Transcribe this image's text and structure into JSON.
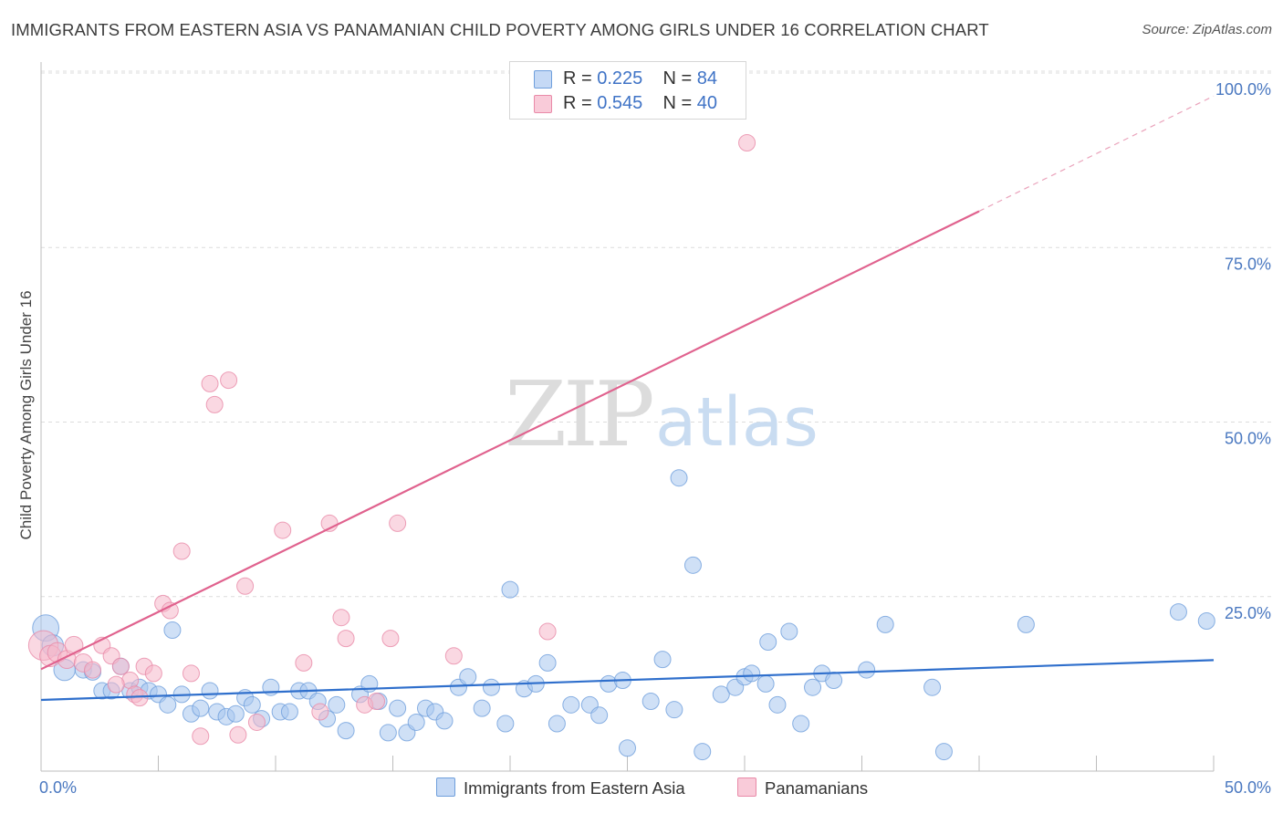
{
  "title": "IMMIGRANTS FROM EASTERN ASIA VS PANAMANIAN CHILD POVERTY AMONG GIRLS UNDER 16 CORRELATION CHART",
  "source": "Source: ZipAtlas.com",
  "watermark": {
    "zip": "ZIP",
    "atlas": "atlas"
  },
  "colors": {
    "blue_fill": "#a8c6ee",
    "blue_stroke": "#6f9fdc",
    "blue_line": "#2f6fcc",
    "pink_fill": "#f6b8cb",
    "pink_stroke": "#e98aa8",
    "pink_line": "#e0628e",
    "tick_text": "#4a78c0",
    "grid": "#dcdcdc"
  },
  "legend": {
    "rows": [
      {
        "r_label": "R =",
        "r_value": "0.225",
        "n_label": "N =",
        "n_value": "84"
      },
      {
        "r_label": "R =",
        "r_value": "0.545",
        "n_label": "N =",
        "n_value": "40"
      }
    ]
  },
  "bottom_legend": {
    "blue": "Immigrants from Eastern Asia",
    "pink": "Panamanians"
  },
  "chart_data": {
    "type": "scatter",
    "xlabel": "",
    "ylabel": "Child Poverty Among Girls Under 16",
    "xlim": [
      0,
      50
    ],
    "ylim": [
      0,
      100
    ],
    "x_tick_labels": [
      "0.0%",
      "50.0%"
    ],
    "y_tick_labels": [
      "100.0%",
      "75.0%",
      "50.0%",
      "25.0%"
    ],
    "y_ticks": [
      100,
      75,
      50,
      25
    ],
    "grid": true,
    "legend_position": "top-center",
    "series": [
      {
        "name": "Immigrants from Eastern Asia",
        "color": "#a8c6ee",
        "trend": {
          "x": [
            0,
            50
          ],
          "y": [
            10.2,
            15.9
          ]
        },
        "points": [
          [
            0.2,
            20.5,
            1.6
          ],
          [
            0.5,
            18,
            1.3
          ],
          [
            1.0,
            14.5,
            1.3
          ],
          [
            1.8,
            14.5,
            1
          ],
          [
            2.2,
            14.2,
            1
          ],
          [
            2.6,
            11.5,
            1
          ],
          [
            3.0,
            11.5,
            1
          ],
          [
            3.4,
            15,
            1
          ],
          [
            3.8,
            11.5,
            1
          ],
          [
            4.2,
            12,
            1
          ],
          [
            4.6,
            11.5,
            1
          ],
          [
            5.0,
            11,
            1
          ],
          [
            5.4,
            9.5,
            1
          ],
          [
            5.6,
            20.2,
            1
          ],
          [
            6.0,
            11,
            1
          ],
          [
            6.4,
            8.2,
            1
          ],
          [
            6.8,
            9,
            1
          ],
          [
            7.2,
            11.5,
            1
          ],
          [
            7.5,
            8.5,
            1
          ],
          [
            7.9,
            7.8,
            1
          ],
          [
            8.3,
            8.2,
            1
          ],
          [
            8.7,
            10.5,
            1
          ],
          [
            9.0,
            9.5,
            1
          ],
          [
            9.4,
            7.5,
            1
          ],
          [
            9.8,
            12,
            1
          ],
          [
            10.2,
            8.5,
            1
          ],
          [
            10.6,
            8.5,
            1
          ],
          [
            11.0,
            11.5,
            1
          ],
          [
            11.4,
            11.5,
            1
          ],
          [
            11.8,
            10,
            1
          ],
          [
            12.2,
            7.5,
            1
          ],
          [
            12.6,
            9.5,
            1
          ],
          [
            13.0,
            5.8,
            1
          ],
          [
            13.6,
            11,
            1
          ],
          [
            14.0,
            12.5,
            1
          ],
          [
            14.4,
            10,
            1
          ],
          [
            14.8,
            5.5,
            1
          ],
          [
            15.2,
            9,
            1
          ],
          [
            15.6,
            5.5,
            1
          ],
          [
            16.0,
            7,
            1
          ],
          [
            16.4,
            9,
            1
          ],
          [
            16.8,
            8.5,
            1
          ],
          [
            17.2,
            7.2,
            1
          ],
          [
            17.8,
            12,
            1
          ],
          [
            18.2,
            13.5,
            1
          ],
          [
            18.8,
            9,
            1
          ],
          [
            19.2,
            12,
            1
          ],
          [
            19.8,
            6.8,
            1
          ],
          [
            20.0,
            26,
            1
          ],
          [
            20.6,
            11.8,
            1
          ],
          [
            21.1,
            12.5,
            1
          ],
          [
            21.6,
            15.5,
            1
          ],
          [
            22.0,
            6.8,
            1
          ],
          [
            22.6,
            9.5,
            1
          ],
          [
            23.4,
            9.5,
            1
          ],
          [
            23.8,
            8,
            1
          ],
          [
            24.2,
            12.5,
            1
          ],
          [
            24.8,
            13,
            1
          ],
          [
            25.0,
            3.3,
            1
          ],
          [
            26.0,
            10,
            1
          ],
          [
            26.5,
            16,
            1
          ],
          [
            27.0,
            8.8,
            1
          ],
          [
            27.2,
            42,
            1
          ],
          [
            27.8,
            29.5,
            1
          ],
          [
            28.2,
            2.8,
            1
          ],
          [
            29.0,
            11,
            1
          ],
          [
            29.6,
            12,
            1
          ],
          [
            30.0,
            13.5,
            1
          ],
          [
            30.3,
            14,
            1
          ],
          [
            30.9,
            12.5,
            1
          ],
          [
            31.0,
            18.5,
            1
          ],
          [
            31.4,
            9.5,
            1
          ],
          [
            31.9,
            20,
            1
          ],
          [
            32.4,
            6.8,
            1
          ],
          [
            32.9,
            12,
            1
          ],
          [
            33.3,
            14,
            1
          ],
          [
            33.8,
            13,
            1
          ],
          [
            35.2,
            14.5,
            1
          ],
          [
            36.0,
            21,
            1
          ],
          [
            38.0,
            12,
            1
          ],
          [
            38.5,
            2.8,
            1
          ],
          [
            42.0,
            21,
            1
          ],
          [
            48.5,
            22.8,
            1
          ],
          [
            49.7,
            21.5,
            1
          ]
        ]
      },
      {
        "name": "Panamanians",
        "color": "#f6b8cb",
        "trend": {
          "x": [
            0,
            40
          ],
          "y": [
            14.6,
            80.2
          ],
          "dashed_to": {
            "x": 50,
            "y": 96.7
          }
        },
        "points": [
          [
            0.1,
            18,
            1.8
          ],
          [
            0.4,
            16.5,
            1.3
          ],
          [
            0.7,
            17,
            1.2
          ],
          [
            1.1,
            16,
            1.1
          ],
          [
            1.4,
            18,
            1.1
          ],
          [
            1.8,
            15.5,
            1.1
          ],
          [
            2.2,
            14.5,
            1
          ],
          [
            2.6,
            18,
            1
          ],
          [
            3.0,
            16.5,
            1
          ],
          [
            3.4,
            15,
            1
          ],
          [
            3.8,
            13,
            1
          ],
          [
            4.0,
            11,
            1
          ],
          [
            4.4,
            15,
            1
          ],
          [
            4.8,
            14,
            1
          ],
          [
            5.2,
            24,
            1
          ],
          [
            5.5,
            23,
            1
          ],
          [
            6.0,
            31.5,
            1
          ],
          [
            6.4,
            14,
            1
          ],
          [
            6.8,
            5,
            1
          ],
          [
            7.2,
            55.5,
            1
          ],
          [
            7.4,
            52.5,
            1
          ],
          [
            8.0,
            56,
            1
          ],
          [
            8.4,
            5.2,
            1
          ],
          [
            8.7,
            26.5,
            1
          ],
          [
            9.2,
            7,
            1
          ],
          [
            10.3,
            34.5,
            1
          ],
          [
            11.2,
            15.5,
            1
          ],
          [
            11.9,
            8.5,
            1
          ],
          [
            12.3,
            35.5,
            1
          ],
          [
            12.8,
            22,
            1
          ],
          [
            13.0,
            19,
            1
          ],
          [
            13.8,
            9.5,
            1
          ],
          [
            14.3,
            10,
            1
          ],
          [
            14.9,
            19,
            1
          ],
          [
            15.2,
            35.5,
            1
          ],
          [
            17.6,
            16.5,
            1
          ],
          [
            21.6,
            20,
            1
          ],
          [
            30.1,
            90,
            1
          ],
          [
            3.2,
            12.4,
            1
          ],
          [
            4.2,
            10.5,
            1
          ]
        ]
      }
    ]
  }
}
